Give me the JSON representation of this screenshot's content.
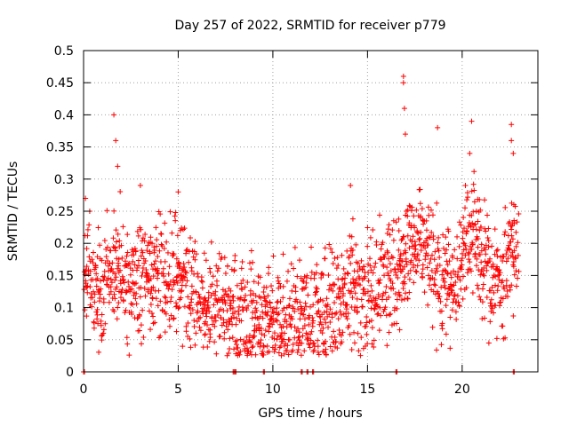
{
  "chart_data": {
    "type": "scatter",
    "title": "Day 257 of 2022, SRMTID for receiver p779",
    "xlabel": "GPS time / hours",
    "ylabel": "SRMTID / TECUs",
    "xlim": [
      0,
      24
    ],
    "ylim": [
      0,
      0.5
    ],
    "x_ticks": [
      0,
      5,
      10,
      15,
      20
    ],
    "x_tick_labels": [
      "0",
      "5",
      "10",
      "15",
      "20"
    ],
    "y_ticks": [
      0,
      0.05,
      0.1,
      0.15,
      0.2,
      0.25,
      0.3,
      0.35,
      0.4,
      0.45,
      0.5
    ],
    "y_tick_labels": [
      "0",
      "0.05",
      "0.1",
      "0.15",
      "0.2",
      "0.25",
      "0.3",
      "0.35",
      "0.4",
      "0.45",
      "0.5"
    ],
    "grid": true,
    "marker": "+",
    "color": "#ff0000",
    "trend": [
      {
        "x": 0.0,
        "y": 0.16
      },
      {
        "x": 0.5,
        "y": 0.13
      },
      {
        "x": 1.0,
        "y": 0.12
      },
      {
        "x": 1.5,
        "y": 0.17
      },
      {
        "x": 2.0,
        "y": 0.15
      },
      {
        "x": 2.5,
        "y": 0.12
      },
      {
        "x": 3.0,
        "y": 0.15
      },
      {
        "x": 3.5,
        "y": 0.15
      },
      {
        "x": 4.0,
        "y": 0.15
      },
      {
        "x": 4.5,
        "y": 0.14
      },
      {
        "x": 5.0,
        "y": 0.15
      },
      {
        "x": 5.5,
        "y": 0.13
      },
      {
        "x": 6.0,
        "y": 0.11
      },
      {
        "x": 6.5,
        "y": 0.1
      },
      {
        "x": 7.0,
        "y": 0.1
      },
      {
        "x": 7.5,
        "y": 0.1
      },
      {
        "x": 8.0,
        "y": 0.1
      },
      {
        "x": 8.5,
        "y": 0.09
      },
      {
        "x": 9.0,
        "y": 0.09
      },
      {
        "x": 9.5,
        "y": 0.08
      },
      {
        "x": 10.0,
        "y": 0.07
      },
      {
        "x": 10.5,
        "y": 0.08
      },
      {
        "x": 11.0,
        "y": 0.09
      },
      {
        "x": 11.5,
        "y": 0.08
      },
      {
        "x": 12.0,
        "y": 0.09
      },
      {
        "x": 12.5,
        "y": 0.09
      },
      {
        "x": 13.0,
        "y": 0.1
      },
      {
        "x": 13.5,
        "y": 0.11
      },
      {
        "x": 14.0,
        "y": 0.12
      },
      {
        "x": 14.5,
        "y": 0.12
      },
      {
        "x": 15.0,
        "y": 0.13
      },
      {
        "x": 15.5,
        "y": 0.13
      },
      {
        "x": 16.0,
        "y": 0.14
      },
      {
        "x": 16.5,
        "y": 0.16
      },
      {
        "x": 17.0,
        "y": 0.18
      },
      {
        "x": 17.5,
        "y": 0.2
      },
      {
        "x": 18.0,
        "y": 0.21
      },
      {
        "x": 18.5,
        "y": 0.16
      },
      {
        "x": 19.0,
        "y": 0.14
      },
      {
        "x": 19.5,
        "y": 0.14
      },
      {
        "x": 20.0,
        "y": 0.17
      },
      {
        "x": 20.5,
        "y": 0.24
      },
      {
        "x": 21.0,
        "y": 0.18
      },
      {
        "x": 21.5,
        "y": 0.14
      },
      {
        "x": 22.0,
        "y": 0.13
      },
      {
        "x": 22.5,
        "y": 0.19
      },
      {
        "x": 23.0,
        "y": 0.2
      }
    ],
    "peaks": [
      {
        "x": 0.1,
        "y": 0.27
      },
      {
        "x": 1.6,
        "y": 0.4
      },
      {
        "x": 1.7,
        "y": 0.36
      },
      {
        "x": 1.8,
        "y": 0.32
      },
      {
        "x": 3.0,
        "y": 0.29
      },
      {
        "x": 5.0,
        "y": 0.28
      },
      {
        "x": 14.1,
        "y": 0.29
      },
      {
        "x": 16.9,
        "y": 0.46
      },
      {
        "x": 16.9,
        "y": 0.45
      },
      {
        "x": 16.95,
        "y": 0.41
      },
      {
        "x": 17.0,
        "y": 0.37
      },
      {
        "x": 18.7,
        "y": 0.38
      },
      {
        "x": 20.5,
        "y": 0.39
      },
      {
        "x": 20.4,
        "y": 0.34
      },
      {
        "x": 22.6,
        "y": 0.385
      },
      {
        "x": 22.6,
        "y": 0.36
      },
      {
        "x": 22.7,
        "y": 0.34
      }
    ],
    "zero_points": [
      0.0,
      7.9,
      8.0,
      9.5,
      11.5,
      11.8,
      12.1,
      16.5,
      22.7
    ]
  }
}
